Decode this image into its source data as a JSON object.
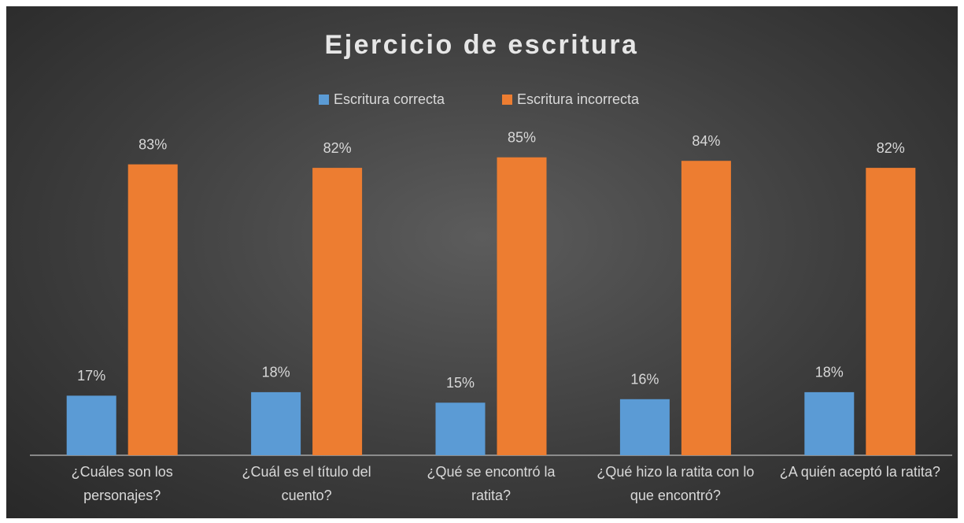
{
  "chart_data": {
    "type": "bar",
    "title": "Ejercicio de escritura",
    "categories": [
      "¿Cuáles son los personajes?",
      "¿Cuál es el título del cuento?",
      "¿Qué se encontró la ratita?",
      "¿Qué hizo la ratita con lo que encontró?",
      "¿A quién aceptó la ratita?"
    ],
    "series": [
      {
        "name": "Escritura correcta",
        "color": "#5b9bd5",
        "values": [
          17,
          18,
          15,
          16,
          18
        ],
        "value_labels": [
          "17%",
          "18%",
          "15%",
          "16%",
          "18%"
        ]
      },
      {
        "name": "Escritura incorrecta",
        "color": "#ed7d31",
        "values": [
          83,
          82,
          85,
          84,
          82
        ],
        "value_labels": [
          "83%",
          "82%",
          "85%",
          "84%",
          "82%"
        ]
      }
    ],
    "legend": "top"
  }
}
